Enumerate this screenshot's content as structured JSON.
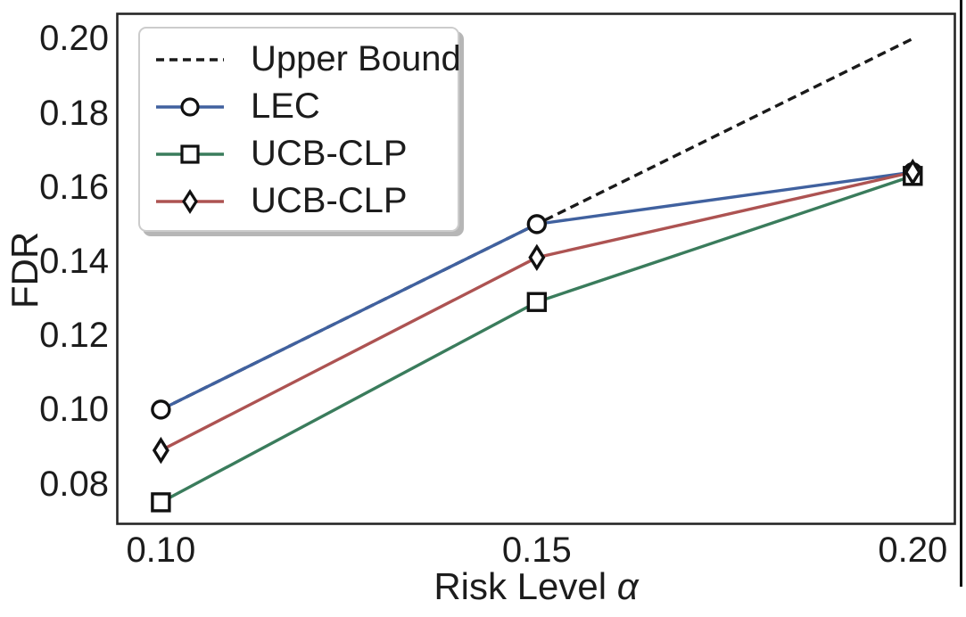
{
  "figure": {
    "background": "#ffffff",
    "frame_color": "#262626",
    "text_color": "#1c1c1c",
    "marker_edge_color": "#111111",
    "marker_fill": "#ffffff",
    "right_edge_line_color": "#111111"
  },
  "chart_data": {
    "type": "line",
    "title": "",
    "xlabel": "Risk Level",
    "xlabel_symbol": "α",
    "ylabel": "FDR",
    "xlim": [
      0.0942,
      0.2056
    ],
    "ylim": [
      0.0692,
      0.2067
    ],
    "grid": false,
    "legend_position": "upper-left",
    "x_ticks": [
      {
        "value": 0.1,
        "label": "0.10"
      },
      {
        "value": 0.15,
        "label": "0.15"
      },
      {
        "value": 0.2,
        "label": "0.20"
      }
    ],
    "y_ticks": [
      {
        "value": 0.2,
        "label": "0.20"
      },
      {
        "value": 0.18,
        "label": "0.18"
      },
      {
        "value": 0.16,
        "label": "0.16"
      },
      {
        "value": 0.14,
        "label": "0.14"
      },
      {
        "value": 0.12,
        "label": "0.12"
      },
      {
        "value": 0.1,
        "label": "0.10"
      },
      {
        "value": 0.08,
        "label": "0.08"
      }
    ],
    "series": [
      {
        "name": "Upper Bound",
        "color": "#1a1a1a",
        "style": "dashed",
        "marker": "none",
        "x": [
          0.1,
          0.15,
          0.2
        ],
        "y": [
          0.1,
          0.15,
          0.2
        ]
      },
      {
        "name": "LEC",
        "color": "#40619f",
        "style": "solid",
        "marker": "circle",
        "x": [
          0.1,
          0.15,
          0.2
        ],
        "y": [
          0.1,
          0.15,
          0.164
        ]
      },
      {
        "name": "UCB-CLP",
        "color": "#3a7c5c",
        "style": "solid",
        "marker": "square",
        "x": [
          0.1,
          0.15,
          0.2
        ],
        "y": [
          0.075,
          0.129,
          0.163
        ]
      },
      {
        "name": "UCB-CLP",
        "color": "#ad5352",
        "style": "solid",
        "marker": "diamond",
        "x": [
          0.1,
          0.15,
          0.2
        ],
        "y": [
          0.089,
          0.141,
          0.164
        ]
      }
    ]
  }
}
